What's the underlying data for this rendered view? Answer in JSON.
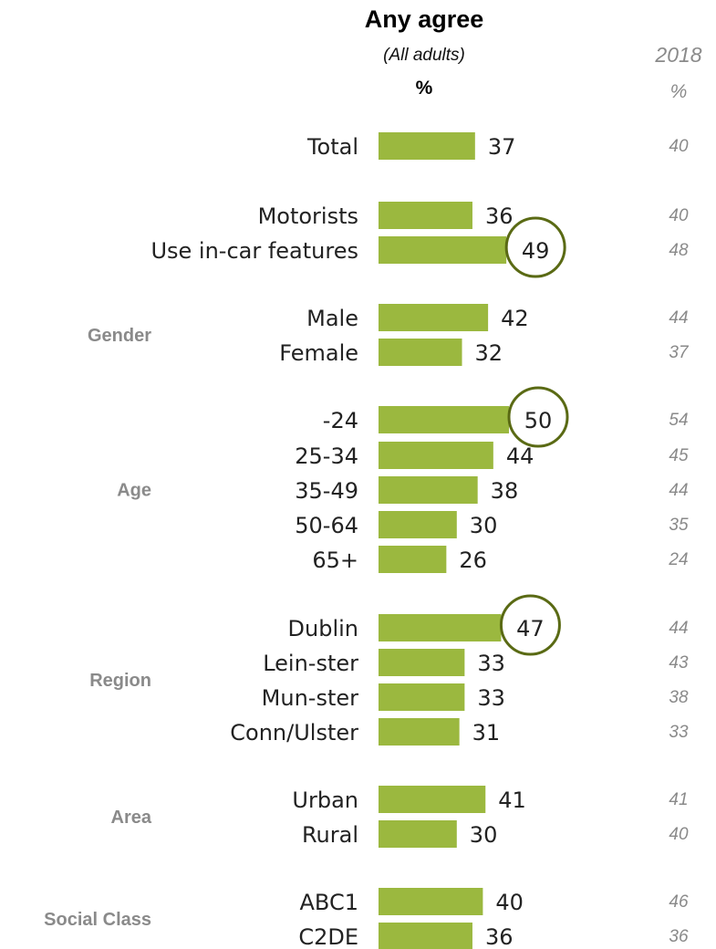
{
  "header": {
    "title": "Any agree",
    "subtitle": "(All adults)",
    "unit": "%",
    "compare_year": "2018",
    "compare_unit": "%"
  },
  "groups": [
    {
      "label": "",
      "rows": [
        0
      ]
    },
    {
      "label": "",
      "rows": [
        1,
        2
      ]
    },
    {
      "label": "Gender",
      "rows": [
        3,
        4
      ]
    },
    {
      "label": "Age",
      "rows": [
        5,
        6,
        7,
        8,
        9
      ]
    },
    {
      "label": "Region",
      "rows": [
        10,
        11,
        12,
        13
      ]
    },
    {
      "label": "Area",
      "rows": [
        14,
        15
      ]
    },
    {
      "label": "Social Class",
      "rows": [
        16,
        17
      ]
    }
  ],
  "colors": {
    "bar": "#9bb83f",
    "circle": "#5a6a14",
    "text": "#222222",
    "group_label": "#8a8a8a",
    "compare": "#8a8a8a"
  },
  "chart_data": {
    "type": "bar",
    "orientation": "horizontal",
    "title": "Any agree",
    "categories": [
      "Total",
      "Motorists",
      "Use in-car features",
      "Male",
      "Female",
      "-24",
      "25-34",
      "35-49",
      "50-64",
      "65+",
      "Dublin",
      "Lein-ster",
      "Mun-ster",
      "Conn/Ulster",
      "Urban",
      "Rural",
      "ABC1",
      "C2DE"
    ],
    "series": [
      {
        "name": "",
        "values": [
          37,
          36,
          49,
          42,
          32,
          50,
          44,
          38,
          30,
          26,
          47,
          33,
          33,
          31,
          41,
          30,
          40,
          36
        ]
      },
      {
        "name": "2018",
        "values": [
          40,
          40,
          48,
          44,
          37,
          54,
          45,
          44,
          35,
          24,
          44,
          43,
          38,
          33,
          41,
          40,
          46,
          36
        ]
      }
    ],
    "highlighted": [
      "Use in-car features",
      "-24",
      "Dublin"
    ],
    "xlim": [
      0,
      100
    ]
  }
}
